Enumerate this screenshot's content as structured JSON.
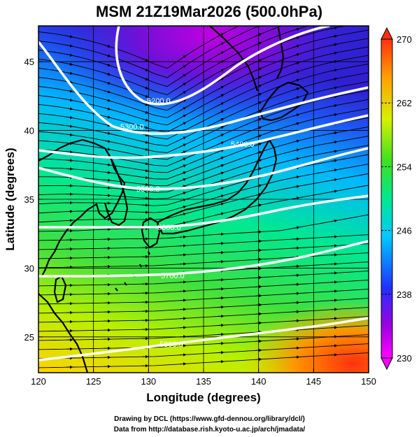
{
  "title": "MSM 21Z19Mar2026 (500.0hPa)",
  "xlabel": "Longitude (degrees)",
  "ylabel": "Latitude  (degrees)",
  "x_ticks": [
    "120",
    "125",
    "130",
    "135",
    "140",
    "145",
    "150"
  ],
  "y_ticks": [
    "25",
    "30",
    "35",
    "40",
    "45"
  ],
  "colorbar": {
    "labels": [
      "270",
      "262",
      "254",
      "246",
      "238",
      "230"
    ],
    "range": [
      230,
      270
    ],
    "colors": [
      "#ff00ff",
      "#8000d0",
      "#2040ff",
      "#00c0ff",
      "#00e880",
      "#60e020",
      "#e8f000",
      "#ffb000",
      "#ff4010"
    ]
  },
  "contours": [
    {
      "label": "5200.0"
    },
    {
      "label": "5300.0"
    },
    {
      "label": "5400.0"
    },
    {
      "label": "5500.0"
    },
    {
      "label": "5600.0"
    },
    {
      "label": "5700.0"
    },
    {
      "label": "5800.0"
    }
  ],
  "credits": {
    "line1": "Drawing by DCL (https://www.gfd-dennou.org/library/dcl/)",
    "line2": "Data from http://database.rish.kyoto-u.ac.jp/arch/jmadata/"
  },
  "chart_data": {
    "type": "heatmap",
    "title": "MSM 21Z19Mar2026 (500.0hPa)",
    "xlabel": "Longitude (degrees)",
    "ylabel": "Latitude  (degrees)",
    "xlim": [
      120,
      150
    ],
    "ylim": [
      22.4,
      47.6
    ],
    "color_variable_range": [
      230,
      270
    ],
    "contour_levels": [
      5200,
      5300,
      5400,
      5500,
      5600,
      5700,
      5800
    ],
    "has_wind_streamlines": true,
    "has_coastlines": true,
    "grid": true
  }
}
